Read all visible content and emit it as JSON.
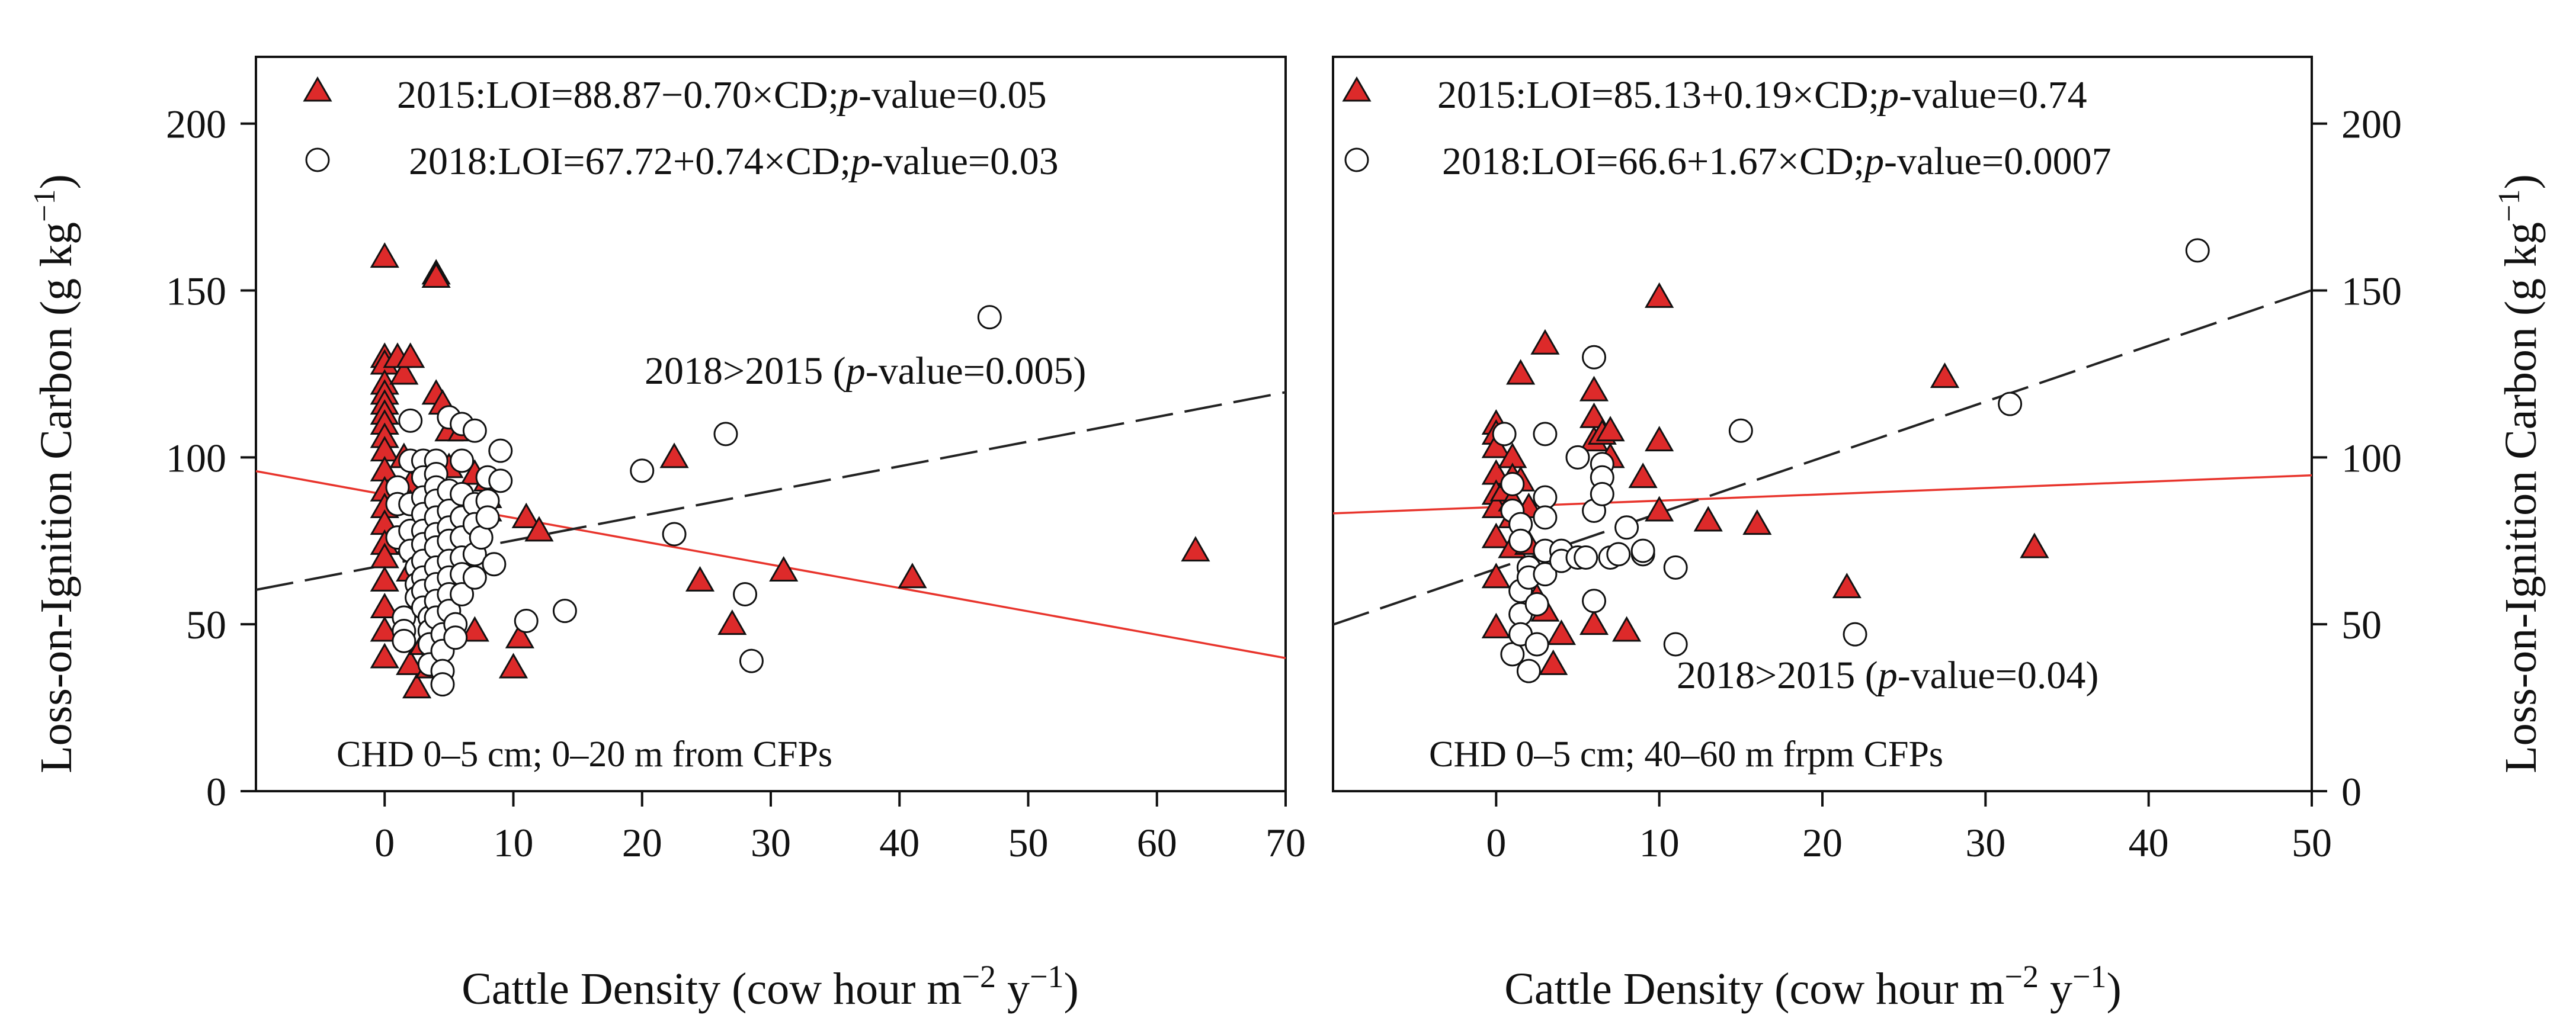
{
  "figure": {
    "y_axis_label": "Loss-on-Ignition Carbon (g kg",
    "y_axis_label_sup": "−1",
    "y_axis_label_end": ")",
    "x_axis_label": "Cattle Density (cow hour m",
    "x_axis_label_sup1": "−2",
    "x_axis_label_mid": " y",
    "x_axis_label_sup2": "−1",
    "x_axis_label_end": ")"
  },
  "colors": {
    "triangle_fill": "#dd2a2a",
    "line_2015": "#e8342c",
    "line_2018": "#222222",
    "axis": "#111111"
  },
  "chart_data": [
    {
      "type": "scatter",
      "panel": "left",
      "xlim": [
        -10,
        70
      ],
      "ylim": [
        0,
        220
      ],
      "x_ticks": [
        0,
        10,
        20,
        30,
        40,
        50,
        60,
        70
      ],
      "y_ticks": [
        0,
        50,
        100,
        150,
        200
      ],
      "y_axis_side": "left",
      "legend_position": "top",
      "legend": [
        {
          "series": "2015",
          "symbol": "triangle",
          "prefix": "2015:LOI=88.87−0.70×CD;",
          "p_label": "p",
          "suffix": "-value=0.05"
        },
        {
          "series": "2018",
          "symbol": "circle",
          "prefix": "2018:LOI=67.72+0.74×CD;",
          "p_label": "p",
          "suffix": "-value=0.03"
        }
      ],
      "comparison": {
        "prefix": "2018>2015 (",
        "p_label": "p",
        "suffix": "-value=0.005)"
      },
      "condition": "CHD 0–5 cm; 0–20 m from CFPs",
      "regression": {
        "2015": {
          "intercept": 88.87,
          "slope": -0.7
        },
        "2018": {
          "intercept": 67.72,
          "slope": 0.74
        }
      },
      "series": [
        {
          "name": "2015",
          "points": [
            [
              0,
              160
            ],
            [
              0,
              130
            ],
            [
              0,
              128
            ],
            [
              0,
              122
            ],
            [
              0,
              119
            ],
            [
              0,
              116
            ],
            [
              0,
              113
            ],
            [
              0,
              110
            ],
            [
              0,
              106
            ],
            [
              0,
              102
            ],
            [
              0,
              96
            ],
            [
              0,
              90
            ],
            [
              0,
              85
            ],
            [
              0,
              80
            ],
            [
              0,
              74
            ],
            [
              0,
              70
            ],
            [
              0,
              63
            ],
            [
              0,
              55
            ],
            [
              0,
              48
            ],
            [
              0,
              40
            ],
            [
              1,
              130
            ],
            [
              1.5,
              125
            ],
            [
              1.5,
              100
            ],
            [
              2,
              130
            ],
            [
              2,
              92
            ],
            [
              2,
              86
            ],
            [
              2,
              74
            ],
            [
              2,
              66
            ],
            [
              2,
              38
            ],
            [
              2.5,
              31
            ],
            [
              3,
              60
            ],
            [
              3,
              44
            ],
            [
              3.5,
              37
            ],
            [
              4,
              155
            ],
            [
              4,
              154
            ],
            [
              4,
              119
            ],
            [
              4.5,
              116
            ],
            [
              5,
              108
            ],
            [
              5,
              97
            ],
            [
              5,
              88
            ],
            [
              5,
              72
            ],
            [
              5,
              64
            ],
            [
              6,
              108
            ],
            [
              6,
              88
            ],
            [
              6,
              76
            ],
            [
              6,
              68
            ],
            [
              7,
              95
            ],
            [
              7,
              48
            ],
            [
              8,
              93
            ],
            [
              8,
              88
            ],
            [
              8,
              84
            ],
            [
              10,
              37
            ],
            [
              10.5,
              46
            ],
            [
              11,
              82
            ],
            [
              12,
              78
            ],
            [
              22.5,
              100
            ],
            [
              24.5,
              63
            ],
            [
              27,
              50
            ],
            [
              31,
              66
            ],
            [
              41,
              64
            ],
            [
              63,
              72
            ]
          ]
        },
        {
          "name": "2018",
          "points": [
            [
              1,
              91
            ],
            [
              1,
              86
            ],
            [
              1,
              76
            ],
            [
              1.5,
              52
            ],
            [
              1.5,
              48
            ],
            [
              1.5,
              45
            ],
            [
              2,
              111
            ],
            [
              2,
              99
            ],
            [
              2,
              86
            ],
            [
              2,
              78
            ],
            [
              2,
              72
            ],
            [
              2.5,
              67
            ],
            [
              2.5,
              62
            ],
            [
              2.5,
              58
            ],
            [
              3,
              99
            ],
            [
              3,
              94
            ],
            [
              3,
              88
            ],
            [
              3,
              83
            ],
            [
              3,
              78
            ],
            [
              3,
              74
            ],
            [
              3,
              69
            ],
            [
              3,
              64
            ],
            [
              3,
              60
            ],
            [
              3,
              55
            ],
            [
              3.5,
              52
            ],
            [
              3.5,
              48
            ],
            [
              3.5,
              44
            ],
            [
              3.5,
              38
            ],
            [
              4,
              99
            ],
            [
              4,
              95
            ],
            [
              4,
              91
            ],
            [
              4,
              87
            ],
            [
              4,
              82
            ],
            [
              4,
              77
            ],
            [
              4,
              73
            ],
            [
              4,
              67
            ],
            [
              4,
              62
            ],
            [
              4,
              57
            ],
            [
              4,
              52
            ],
            [
              4.5,
              47
            ],
            [
              4.5,
              42
            ],
            [
              4.5,
              36
            ],
            [
              4.5,
              32
            ],
            [
              5,
              112
            ],
            [
              5,
              90
            ],
            [
              5,
              84
            ],
            [
              5,
              79
            ],
            [
              5,
              75
            ],
            [
              5,
              69
            ],
            [
              5,
              64
            ],
            [
              5,
              59
            ],
            [
              5,
              54
            ],
            [
              5.5,
              50
            ],
            [
              5.5,
              46
            ],
            [
              6,
              110
            ],
            [
              6,
              99
            ],
            [
              6,
              89
            ],
            [
              6,
              82
            ],
            [
              6,
              76
            ],
            [
              6,
              70
            ],
            [
              6,
              65
            ],
            [
              6,
              59
            ],
            [
              7,
              108
            ],
            [
              7,
              86
            ],
            [
              7,
              80
            ],
            [
              7,
              71
            ],
            [
              7,
              64
            ],
            [
              7.5,
              76
            ],
            [
              8,
              94
            ],
            [
              8,
              87
            ],
            [
              8,
              82
            ],
            [
              8.5,
              68
            ],
            [
              9,
              102
            ],
            [
              9,
              93
            ],
            [
              11,
              51
            ],
            [
              14,
              54
            ],
            [
              20,
              96
            ],
            [
              22.5,
              77
            ],
            [
              26.5,
              107
            ],
            [
              28,
              59
            ],
            [
              28.5,
              39
            ],
            [
              47,
              142
            ]
          ]
        }
      ]
    },
    {
      "type": "scatter",
      "panel": "right",
      "xlim": [
        -10,
        50
      ],
      "ylim": [
        0,
        220
      ],
      "x_ticks": [
        0,
        10,
        20,
        30,
        40,
        50
      ],
      "y_ticks": [
        0,
        50,
        100,
        150,
        200
      ],
      "y_axis_side": "right",
      "legend_position": "top",
      "legend": [
        {
          "series": "2015",
          "symbol": "triangle",
          "prefix": "2015:LOI=85.13+0.19×CD;",
          "p_label": "p",
          "suffix": "-value=0.74"
        },
        {
          "series": "2018",
          "symbol": "circle",
          "prefix": "2018:LOI=66.6+1.67×CD;",
          "p_label": "p",
          "suffix": "-value=0.0007"
        }
      ],
      "comparison": {
        "prefix": "2018>2015 (",
        "p_label": "p",
        "suffix": "-value=0.04)"
      },
      "condition": "CHD 0–5 cm; 40–60 m frpm CFPs",
      "regression": {
        "2015": {
          "intercept": 85.13,
          "slope": 0.19
        },
        "2018": {
          "intercept": 66.6,
          "slope": 1.67
        }
      },
      "series": [
        {
          "name": "2015",
          "points": [
            [
              0,
              110
            ],
            [
              0,
              107
            ],
            [
              0,
              103
            ],
            [
              0,
              95
            ],
            [
              0,
              89
            ],
            [
              0,
              85
            ],
            [
              0,
              76
            ],
            [
              0,
              64
            ],
            [
              0,
              49
            ],
            [
              0.5,
              90
            ],
            [
              1,
              100
            ],
            [
              1,
              94
            ],
            [
              1,
              87
            ],
            [
              1,
              82
            ],
            [
              1,
              73
            ],
            [
              1.5,
              125
            ],
            [
              1.5,
              93
            ],
            [
              2,
              85
            ],
            [
              2,
              74
            ],
            [
              2.5,
              58
            ],
            [
              3,
              134
            ],
            [
              3,
              54
            ],
            [
              3.5,
              38
            ],
            [
              4,
              47
            ],
            [
              6,
              120
            ],
            [
              6,
              112
            ],
            [
              6,
              105
            ],
            [
              6,
              50
            ],
            [
              6.5,
              107
            ],
            [
              7,
              108
            ],
            [
              7,
              100
            ],
            [
              8,
              48
            ],
            [
              9,
              94
            ],
            [
              10,
              148
            ],
            [
              10,
              105
            ],
            [
              10,
              84
            ],
            [
              13,
              81
            ],
            [
              16,
              80
            ],
            [
              21.5,
              61
            ],
            [
              27.5,
              124
            ],
            [
              33,
              73
            ]
          ]
        },
        {
          "name": "2018",
          "points": [
            [
              0.5,
              107
            ],
            [
              1,
              92
            ],
            [
              1,
              84
            ],
            [
              1,
              41
            ],
            [
              1.5,
              80
            ],
            [
              1.5,
              75
            ],
            [
              1.5,
              60
            ],
            [
              1.5,
              53
            ],
            [
              1.5,
              47
            ],
            [
              2,
              67
            ],
            [
              2,
              64
            ],
            [
              2,
              36
            ],
            [
              2.5,
              56
            ],
            [
              2.5,
              44
            ],
            [
              3,
              107
            ],
            [
              3,
              88
            ],
            [
              3,
              82
            ],
            [
              3,
              72
            ],
            [
              3,
              65
            ],
            [
              4,
              72
            ],
            [
              4,
              69
            ],
            [
              5,
              100
            ],
            [
              5,
              70
            ],
            [
              5.5,
              70
            ],
            [
              6,
              130
            ],
            [
              6,
              84
            ],
            [
              6,
              57
            ],
            [
              6.5,
              98
            ],
            [
              6.5,
              94
            ],
            [
              6.5,
              89
            ],
            [
              7,
              70
            ],
            [
              7.5,
              71
            ],
            [
              8,
              79
            ],
            [
              9,
              71
            ],
            [
              9,
              72
            ],
            [
              11,
              67
            ],
            [
              11,
              44
            ],
            [
              15,
              108
            ],
            [
              22,
              47
            ],
            [
              31.5,
              116
            ],
            [
              43,
              162
            ]
          ]
        }
      ]
    }
  ]
}
